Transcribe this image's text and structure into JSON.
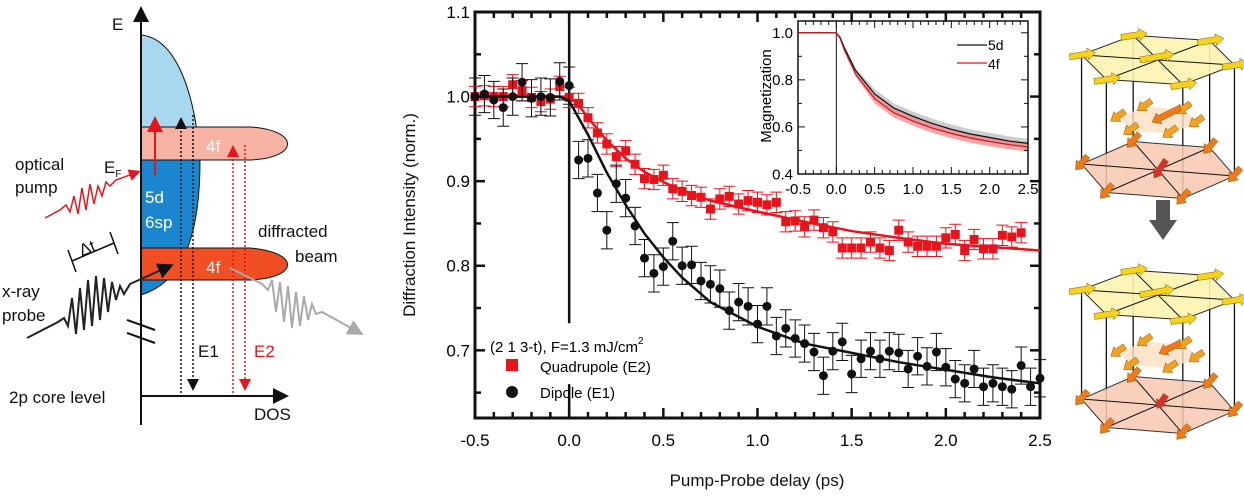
{
  "diagram": {
    "energy_axis": "E",
    "dos_axis": "DOS",
    "core_level": "2p core level",
    "band_5d": "5d",
    "band_6sp": "6sp",
    "band_4f_upper": "4f",
    "band_4f_lower": "4f",
    "optical_pump_1": "optical",
    "optical_pump_2": "pump",
    "fermi_main": "E",
    "fermi_sub": "F",
    "xray_probe_1": "x-ray",
    "xray_probe_2": "probe",
    "delay": "Δt",
    "diffracted_1": "diffracted",
    "diffracted_2": "beam",
    "transition_e1": "E1",
    "transition_e2": "E2",
    "colors": {
      "band_light_blue": "#a8d8f0",
      "band_blue": "#1a86d0",
      "band_4f_upper": "#f6b3a3",
      "band_4f_lower": "#f04e23",
      "pump": "#e8141b",
      "probe": "#222222",
      "diffracted": "#aaaaaa"
    }
  },
  "chart_data": [
    {
      "type": "scatter",
      "xlabel": "Pump-Probe delay (ps)",
      "ylabel": "Diffraction Intensity (norm.)",
      "xlim": [
        -0.5,
        2.5
      ],
      "ylim": [
        0.62,
        1.1
      ],
      "xticks": [
        "-0.5",
        "0.0",
        "0.5",
        "1.0",
        "1.5",
        "2.0",
        "2.5"
      ],
      "yticks": [
        "0.7",
        "0.8",
        "0.9",
        "1.0",
        "1.1"
      ],
      "annotation": "(2 1 3-t), F=1.3 mJ/cm",
      "annotation_sup": "2",
      "legend_position": "bottom-left",
      "marker_line_x": 0.0,
      "series": [
        {
          "name": "Quadrupole (E2)",
          "marker": "square",
          "color": "#e8141b",
          "yerr": 0.012,
          "x": [
            -0.5,
            -0.45,
            -0.4,
            -0.35,
            -0.3,
            -0.25,
            -0.2,
            -0.15,
            -0.1,
            -0.05,
            0.0,
            0.05,
            0.1,
            0.15,
            0.2,
            0.25,
            0.3,
            0.35,
            0.4,
            0.45,
            0.5,
            0.55,
            0.6,
            0.65,
            0.7,
            0.75,
            0.8,
            0.85,
            0.9,
            0.95,
            1.0,
            1.05,
            1.1,
            1.15,
            1.2,
            1.25,
            1.3,
            1.35,
            1.4,
            1.45,
            1.5,
            1.55,
            1.6,
            1.65,
            1.7,
            1.75,
            1.8,
            1.85,
            1.9,
            1.95,
            2.0,
            2.05,
            2.1,
            2.15,
            2.2,
            2.25,
            2.3,
            2.35,
            2.4
          ],
          "y": [
            1.0,
            1.001,
            1.0,
            1.0,
            1.014,
            1.007,
            0.999,
            0.994,
            0.997,
            1.012,
            0.999,
            0.992,
            0.975,
            0.957,
            0.944,
            0.929,
            0.936,
            0.92,
            0.903,
            0.902,
            0.907,
            0.891,
            0.888,
            0.883,
            0.881,
            0.867,
            0.879,
            0.882,
            0.873,
            0.877,
            0.875,
            0.872,
            0.875,
            0.852,
            0.853,
            0.846,
            0.854,
            0.845,
            0.84,
            0.821,
            0.821,
            0.821,
            0.828,
            0.821,
            0.818,
            0.842,
            0.828,
            0.823,
            0.823,
            0.823,
            0.833,
            0.837,
            0.818,
            0.831,
            0.82,
            0.82,
            0.836,
            0.834,
            0.839
          ],
          "fit": {
            "x": [
              -0.5,
              0.0,
              0.05,
              0.1,
              0.2,
              0.3,
              0.4,
              0.5,
              0.6,
              0.75,
              1.0,
              1.25,
              1.5,
              1.75,
              2.0,
              2.25,
              2.5
            ],
            "y": [
              1.0,
              1.0,
              0.99,
              0.975,
              0.948,
              0.927,
              0.911,
              0.899,
              0.889,
              0.877,
              0.864,
              0.852,
              0.841,
              0.833,
              0.826,
              0.822,
              0.818
            ]
          }
        },
        {
          "name": "Dipole (E1)",
          "marker": "circle",
          "color": "#111111",
          "yerr": 0.022,
          "x": [
            -0.5,
            -0.45,
            -0.4,
            -0.35,
            -0.3,
            -0.25,
            -0.2,
            -0.15,
            -0.1,
            -0.05,
            0.0,
            0.05,
            0.1,
            0.15,
            0.2,
            0.25,
            0.3,
            0.35,
            0.4,
            0.45,
            0.5,
            0.55,
            0.6,
            0.65,
            0.7,
            0.75,
            0.8,
            0.85,
            0.9,
            0.95,
            1.0,
            1.05,
            1.1,
            1.15,
            1.2,
            1.25,
            1.3,
            1.35,
            1.4,
            1.45,
            1.5,
            1.55,
            1.6,
            1.65,
            1.7,
            1.75,
            1.8,
            1.85,
            1.9,
            1.95,
            2.0,
            2.05,
            2.1,
            2.15,
            2.2,
            2.25,
            2.3,
            2.35,
            2.4,
            2.45,
            2.5
          ],
          "y": [
            1.0,
            1.003,
            0.996,
            0.987,
            1.0,
            1.017,
            0.998,
            1.0,
            0.999,
            1.018,
            1.013,
            0.925,
            0.927,
            0.886,
            0.842,
            0.897,
            0.88,
            0.847,
            0.809,
            0.791,
            0.799,
            0.829,
            0.8,
            0.801,
            0.782,
            0.778,
            0.773,
            0.747,
            0.757,
            0.752,
            0.731,
            0.752,
            0.717,
            0.726,
            0.714,
            0.708,
            0.698,
            0.67,
            0.699,
            0.71,
            0.672,
            0.69,
            0.699,
            0.69,
            0.699,
            0.697,
            0.678,
            0.693,
            0.681,
            0.698,
            0.68,
            0.666,
            0.661,
            0.678,
            0.657,
            0.661,
            0.657,
            0.654,
            0.682,
            0.657,
            0.667
          ],
          "fit": {
            "x": [
              -0.5,
              -0.05,
              0.0,
              0.1,
              0.2,
              0.3,
              0.4,
              0.5,
              0.6,
              0.75,
              1.0,
              1.25,
              1.5,
              1.75,
              2.0,
              2.25,
              2.5
            ],
            "y": [
              1.0,
              1.0,
              0.995,
              0.955,
              0.91,
              0.872,
              0.838,
              0.81,
              0.786,
              0.757,
              0.728,
              0.708,
              0.697,
              0.686,
              0.677,
              0.668,
              0.661
            ]
          }
        }
      ]
    },
    {
      "type": "line",
      "ylabel": "Magnetization",
      "xlim": [
        -0.5,
        2.5
      ],
      "ylim": [
        0.4,
        1.05
      ],
      "xticks": [
        "-0.5",
        "0.0",
        "0.5",
        "1.0",
        "1.5",
        "2.0",
        "2.5"
      ],
      "yticks": [
        "0.4",
        "0.6",
        "0.8",
        "1.0"
      ],
      "legend_position": "top-right",
      "marker_line_x": 0.0,
      "series": [
        {
          "name": "5d",
          "color": "#111111",
          "band_color": "#b8b8b8",
          "band": 0.02,
          "x": [
            -0.5,
            0.0,
            0.05,
            0.1,
            0.25,
            0.5,
            0.75,
            1.0,
            1.25,
            1.5,
            1.75,
            2.0,
            2.25,
            2.5
          ],
          "y": [
            1.0,
            1.0,
            0.98,
            0.94,
            0.84,
            0.74,
            0.68,
            0.645,
            0.615,
            0.59,
            0.57,
            0.555,
            0.54,
            0.53
          ]
        },
        {
          "name": "4f",
          "color": "#d4141b",
          "band_color": "#f08080",
          "band": 0.02,
          "x": [
            -0.5,
            0.0,
            0.05,
            0.1,
            0.25,
            0.5,
            0.75,
            1.0,
            1.25,
            1.5,
            1.75,
            2.0,
            2.25,
            2.5
          ],
          "y": [
            1.0,
            1.0,
            0.975,
            0.93,
            0.825,
            0.72,
            0.66,
            0.625,
            0.595,
            0.572,
            0.553,
            0.538,
            0.525,
            0.515
          ]
        }
      ]
    }
  ],
  "structure": {
    "colors": {
      "top_layer": "#fdf5b0",
      "bottom_layer": "#f8c8b0",
      "yellow_arrow": "#f5d21c",
      "orange_arrow": "#f07a1a",
      "red_arrow": "#d83030",
      "transition_arrow": "#555555"
    }
  }
}
